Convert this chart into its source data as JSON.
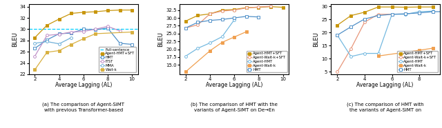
{
  "x": [
    2,
    3,
    4,
    5,
    6,
    7,
    8,
    9,
    10
  ],
  "chart1": {
    "full_sentence": 30.1,
    "agent_hmt_sft": [
      28.5,
      30.7,
      31.8,
      32.8,
      33.0,
      33.1,
      33.3,
      33.4,
      33.4
    ],
    "hmt": [
      26.6,
      28.1,
      29.2,
      29.3,
      30.0,
      29.9,
      30.2,
      27.5,
      27.3
    ],
    "itst": [
      25.2,
      28.9,
      29.1,
      29.5,
      29.6,
      30.0,
      30.5,
      29.7,
      null
    ],
    "mma": [
      27.5,
      27.8,
      27.4,
      28.5,
      null,
      null,
      null,
      null,
      null
    ],
    "wait_k": [
      22.8,
      25.9,
      26.2,
      27.3,
      28.3,
      29.2,
      null,
      null,
      29.5
    ],
    "ylim": [
      22,
      34.5
    ],
    "yticks": [
      22,
      24,
      26,
      28,
      30,
      32,
      34
    ],
    "ylabel": "BLEU"
  },
  "chart2": {
    "agent_hmt_sft": [
      29.0,
      30.8,
      31.3,
      32.5,
      32.7,
      33.3,
      33.4,
      33.6,
      33.4
    ],
    "agent_wait_k_sft": [
      26.8,
      27.8,
      31.3,
      32.2,
      32.5,
      33.2,
      33.5,
      33.7,
      null
    ],
    "agent_hmt": [
      17.8,
      20.3,
      22.0,
      24.0,
      29.4,
      null,
      null,
      null,
      null
    ],
    "agent_wait_k": [
      12.8,
      null,
      19.5,
      22.2,
      23.9,
      25.6,
      null,
      null,
      null
    ],
    "hmt": [
      26.8,
      28.6,
      29.2,
      29.5,
      30.0,
      30.5,
      30.3,
      null,
      null
    ],
    "ylim": [
      12,
      34.5
    ],
    "yticks": [
      15.0,
      17.5,
      20.0,
      22.5,
      25.0,
      27.5,
      30.0,
      32.5
    ],
    "ylabel": "BLEU"
  },
  "chart3": {
    "agent_hmt_sft": [
      22.8,
      26.5,
      27.8,
      29.8,
      29.8,
      29.7,
      29.8,
      29.8,
      null
    ],
    "agent_wait_k_sft": [
      4.9,
      13.8,
      24.0,
      27.0,
      27.0,
      null,
      null,
      null,
      null
    ],
    "agent_hmt": [
      19.0,
      10.8,
      12.0,
      12.0,
      27.0,
      27.0,
      28.0,
      28.2,
      null
    ],
    "agent_wait_k": [
      null,
      null,
      null,
      11.0,
      null,
      null,
      13.2,
      14.0,
      null
    ],
    "hmt": [
      19.0,
      22.2,
      25.2,
      26.5,
      27.0,
      27.2,
      27.5,
      28.0,
      28.0
    ],
    "ylim": [
      4,
      31
    ],
    "yticks": [
      5,
      10,
      15,
      20,
      25,
      30
    ],
    "ylabel": "BLEU"
  },
  "colors": {
    "agent_hmt_sft": "#c8960c",
    "agent_wait_k_sft": "#e8967a",
    "agent_hmt": "#74b9e0",
    "agent_wait_k": "#f0a050",
    "hmt": "#5090c8",
    "full_sentence": "#00cfff",
    "itst": "#c090c8",
    "mma": "#70b0d8",
    "wait_k": "#d8b040"
  },
  "captions": [
    "(a) The comparison of Agent-SiMT\nwith previous Transformer-based",
    "(b) The comparison of HMT with the\nvariants of Agent-SiMT on De→En",
    "(c) The comparison of HMT with\nthe variants of Agent-SiMT on"
  ]
}
